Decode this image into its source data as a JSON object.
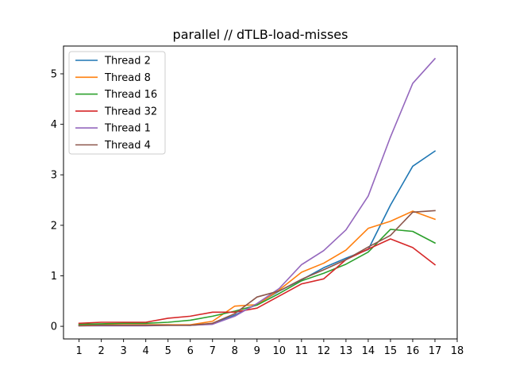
{
  "chart_data": {
    "type": "line",
    "title": "parallel // dTLB-load-misses",
    "xlabel": "",
    "ylabel": "",
    "x": [
      1,
      2,
      3,
      4,
      5,
      6,
      7,
      8,
      9,
      10,
      11,
      12,
      13,
      14,
      15,
      16,
      17
    ],
    "xticks": [
      "1",
      "2",
      "3",
      "4",
      "5",
      "6",
      "7",
      "8",
      "9",
      "10",
      "11",
      "12",
      "13",
      "14",
      "15",
      "16",
      "17",
      "18"
    ],
    "yticks": [
      "0",
      "1",
      "2",
      "3",
      "4",
      "5"
    ],
    "xlim": [
      0.3,
      18
    ],
    "ylim": [
      -0.25,
      5.55
    ],
    "legend_position": "upper-left",
    "grid": false,
    "series": [
      {
        "name": "Thread 2",
        "color": "#1f77b4",
        "values": [
          0.02,
          0.03,
          0.03,
          0.03,
          0.03,
          0.02,
          0.05,
          0.22,
          0.44,
          0.7,
          0.92,
          1.16,
          1.35,
          1.52,
          2.4,
          3.17,
          3.47
        ]
      },
      {
        "name": "Thread 8",
        "color": "#ff7f0e",
        "values": [
          0.03,
          0.03,
          0.03,
          0.03,
          0.03,
          0.03,
          0.1,
          0.4,
          0.43,
          0.72,
          1.07,
          1.25,
          1.51,
          1.94,
          2.08,
          2.28,
          2.12
        ]
      },
      {
        "name": "Thread 16",
        "color": "#2ca02c",
        "values": [
          0.04,
          0.05,
          0.06,
          0.06,
          0.08,
          0.12,
          0.2,
          0.3,
          0.42,
          0.65,
          0.9,
          1.05,
          1.23,
          1.47,
          1.92,
          1.88,
          1.65
        ]
      },
      {
        "name": "Thread 32",
        "color": "#d62728",
        "values": [
          0.06,
          0.08,
          0.08,
          0.08,
          0.16,
          0.2,
          0.28,
          0.28,
          0.36,
          0.6,
          0.84,
          0.94,
          1.32,
          1.53,
          1.73,
          1.56,
          1.22
        ]
      },
      {
        "name": "Thread 1",
        "color": "#9467bd",
        "values": [
          0.01,
          0.01,
          0.01,
          0.01,
          0.02,
          0.02,
          0.04,
          0.2,
          0.45,
          0.75,
          1.22,
          1.5,
          1.91,
          2.58,
          3.75,
          4.81,
          5.3
        ]
      },
      {
        "name": "Thread 4",
        "color": "#8c564b",
        "values": [
          0.01,
          0.02,
          0.02,
          0.02,
          0.02,
          0.02,
          0.06,
          0.25,
          0.58,
          0.7,
          0.93,
          1.12,
          1.32,
          1.57,
          1.8,
          2.26,
          2.29
        ]
      }
    ]
  }
}
